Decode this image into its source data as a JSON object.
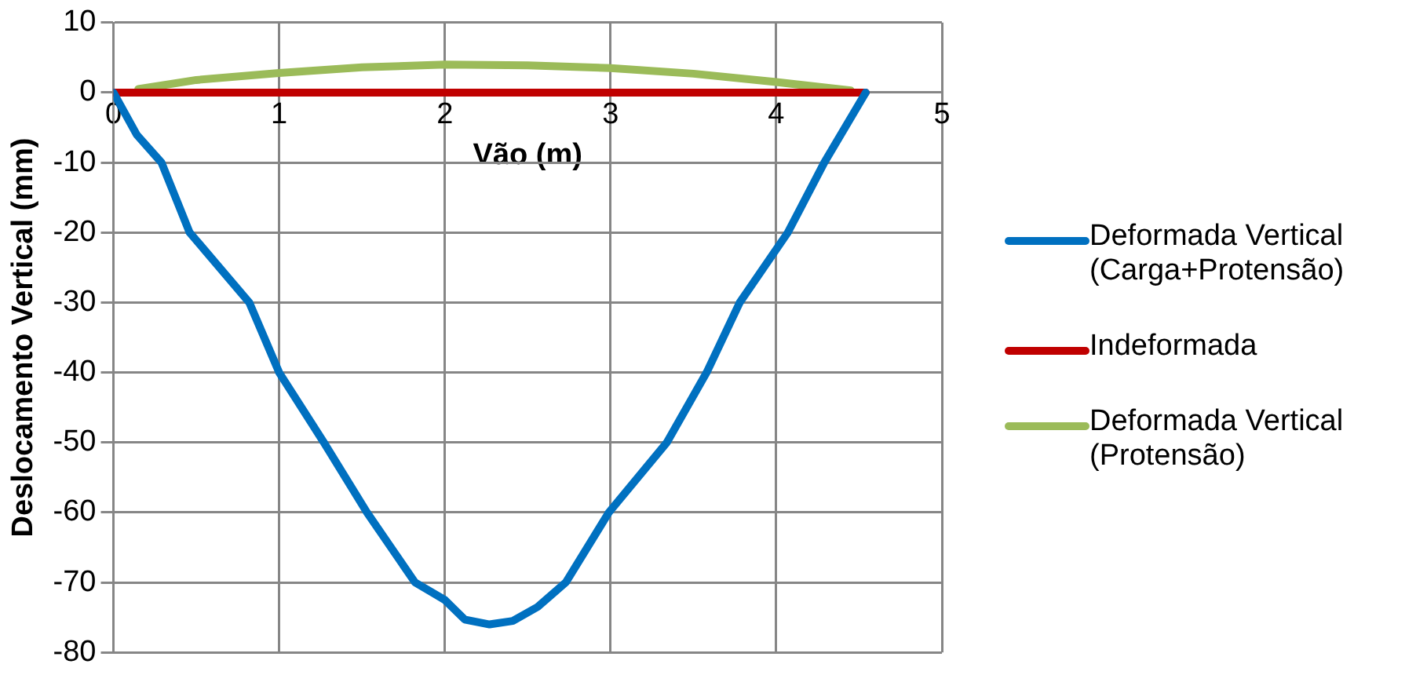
{
  "chart_data": {
    "type": "line",
    "xlabel": "Vão (m)",
    "ylabel": "Deslocamento Vertical (mm)",
    "xlim": [
      0,
      5
    ],
    "xticks": [
      0,
      1,
      2,
      3,
      4,
      5
    ],
    "ylim": [
      -80,
      10
    ],
    "yticks": [
      -80,
      -70,
      -60,
      -50,
      -40,
      -30,
      -20,
      -10,
      0,
      10
    ],
    "grid": true,
    "legend": "right",
    "marker": "none",
    "line_style": "solid",
    "series": [
      {
        "name": "Deformada Vertical (Carga+Protensão)",
        "color": "#0070c0",
        "x": [
          0,
          0.14,
          0.29,
          0.46,
          0.82,
          1.0,
          1.27,
          1.53,
          1.82,
          2.0,
          2.12,
          2.27,
          2.41,
          2.56,
          2.73,
          2.99,
          3.34,
          3.58,
          3.78,
          4.07,
          4.29,
          4.54
        ],
        "values": [
          0,
          -6,
          -10,
          -20,
          -30,
          -40,
          -50,
          -60,
          -70,
          -72.5,
          -75.3,
          -76,
          -75.5,
          -73.5,
          -70,
          -60,
          -50,
          -40,
          -30,
          -20,
          -10,
          0
        ]
      },
      {
        "name": "Indeformada",
        "color": "#c00000",
        "x": [
          0,
          4.54
        ],
        "values": [
          0,
          0
        ]
      },
      {
        "name": "Deformada Vertical (Protensão)",
        "color": "#9bbb59",
        "x": [
          0.15,
          0.5,
          1,
          1.5,
          2,
          2.5,
          3,
          3.5,
          4,
          4.45
        ],
        "values": [
          0.5,
          1.8,
          2.8,
          3.6,
          4,
          3.9,
          3.5,
          2.7,
          1.5,
          0.3
        ]
      }
    ]
  }
}
